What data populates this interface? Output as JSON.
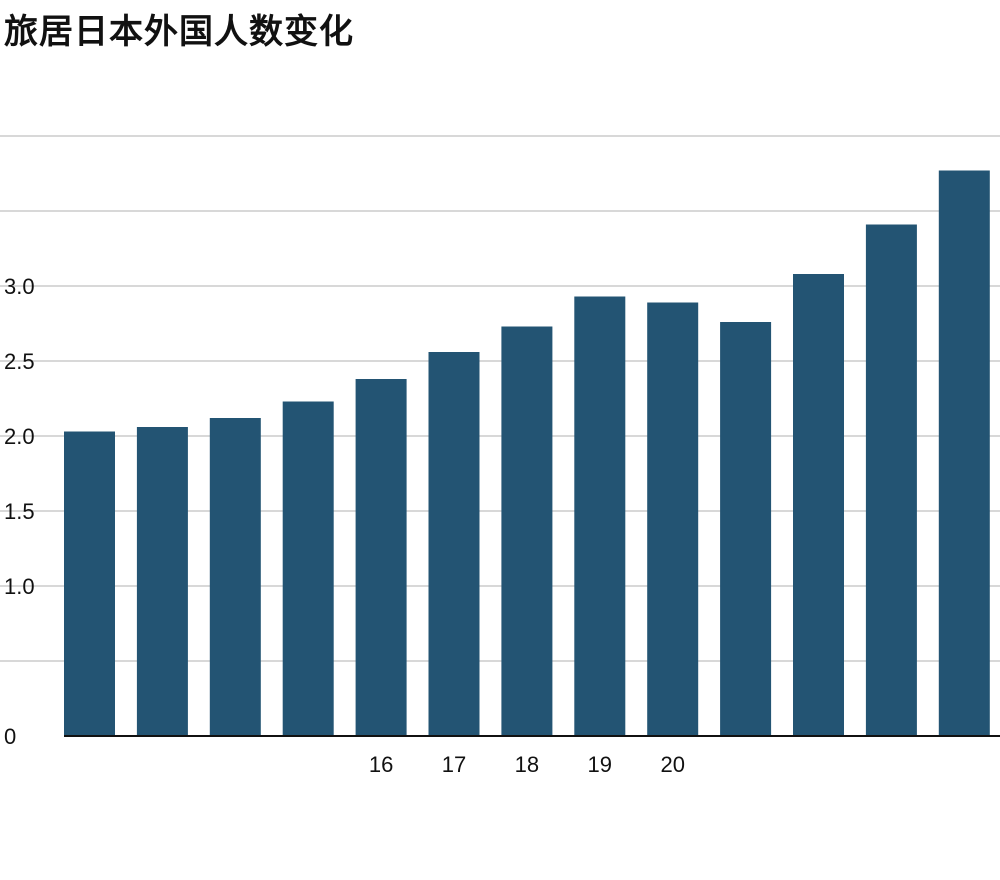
{
  "title": "旅居日本外国人数变化",
  "chart_data": {
    "type": "bar",
    "title": "旅居日本外国人数变化",
    "categories": [
      "",
      "",
      "",
      "",
      "16",
      "17",
      "18",
      "19",
      "20",
      "",
      "",
      "",
      ""
    ],
    "values": [
      2.03,
      2.06,
      2.12,
      2.23,
      2.38,
      2.56,
      2.73,
      2.93,
      2.89,
      2.76,
      3.08,
      3.41,
      3.77
    ],
    "ylim": [
      0,
      4.0
    ],
    "yticks": [
      0,
      0.5,
      1.0,
      1.5,
      2.0,
      2.5,
      3.0,
      3.5,
      4.0
    ],
    "ytick_labels": [
      "0",
      "",
      "1.0",
      "1.5",
      "2.0",
      "2.5",
      "3.0",
      "",
      ""
    ],
    "xlabel": "",
    "ylabel": "",
    "grid": true,
    "bar_color": "#235473",
    "grid_color": "#cccccc"
  }
}
